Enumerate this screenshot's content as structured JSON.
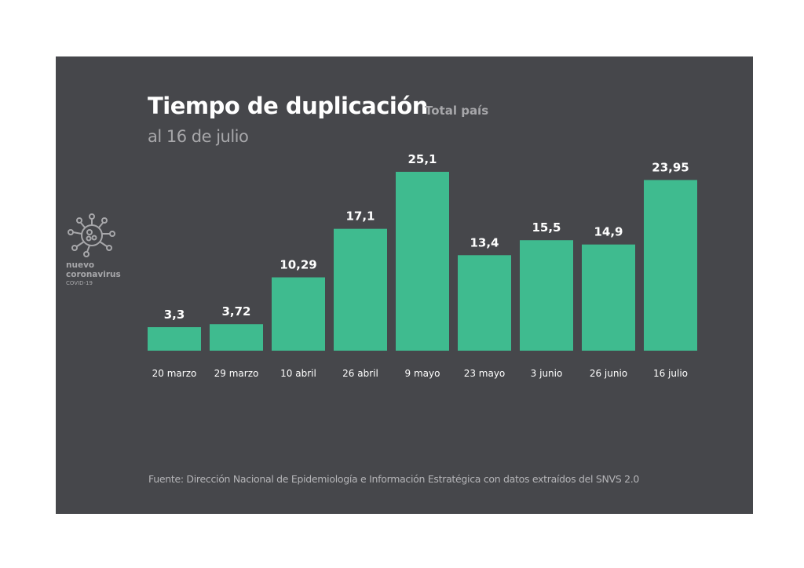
{
  "logo": {
    "line1": "nuevo",
    "line2": "coronavirus",
    "line3": "COVID-19"
  },
  "chart_data": {
    "type": "bar",
    "title": "Tiempo de duplicación",
    "subtitle": "Total país",
    "date_label": "al 16 de julio",
    "categories": [
      "20 marzo",
      "29 marzo",
      "10 abril",
      "26 abril",
      "9 mayo",
      "23 mayo",
      "3 junio",
      "26 junio",
      "16 julio"
    ],
    "values": [
      3.3,
      3.72,
      10.29,
      17.1,
      25.1,
      13.4,
      15.5,
      14.9,
      23.95
    ],
    "value_labels": [
      "3,3",
      "3,72",
      "10,29",
      "17,1",
      "25,1",
      "13,4",
      "15,5",
      "14,9",
      "23,95"
    ],
    "xlabel": "",
    "ylabel": "",
    "ylim": [
      0,
      25.1
    ],
    "grid": false,
    "bar_color": "#3fbb8f",
    "source": "Fuente: Dirección Nacional de Epidemiología e Información Estratégica con datos extraídos del SNVS 2.0"
  }
}
